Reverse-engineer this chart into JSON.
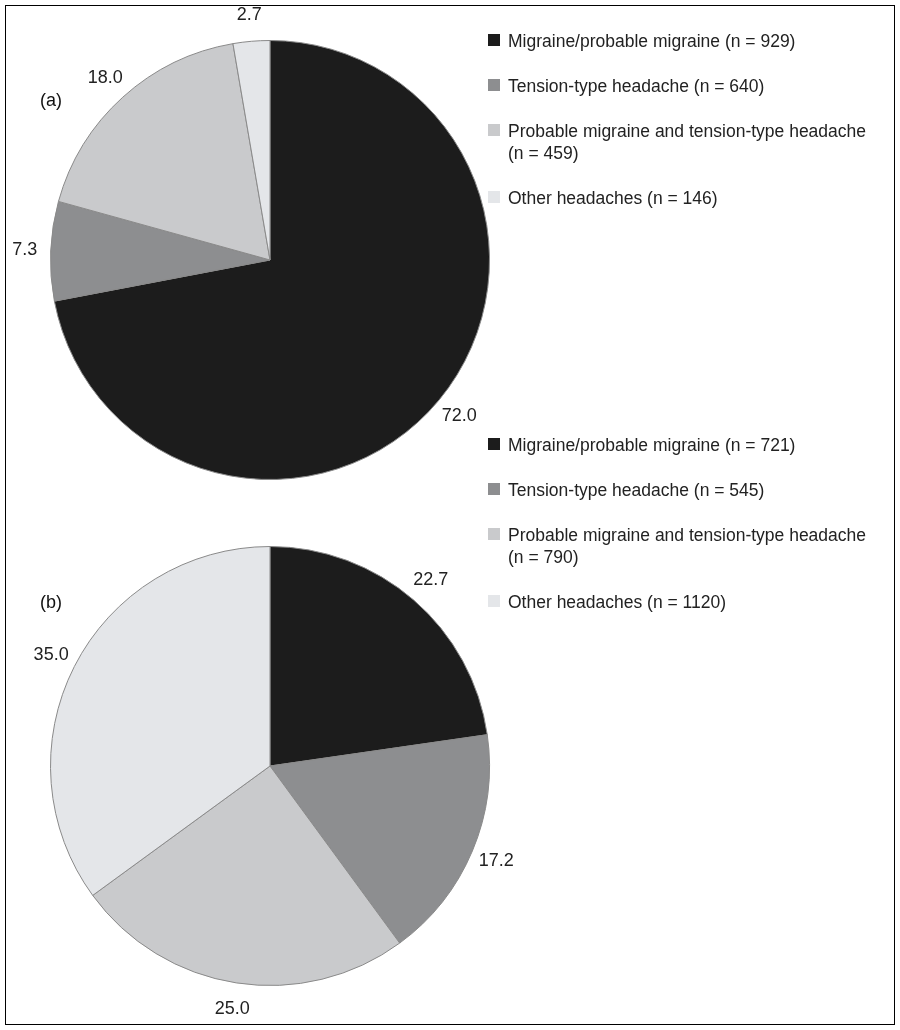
{
  "chart_data": [
    {
      "type": "pie",
      "title": "(a)",
      "categories": [
        "Migraine/probable migraine (n = 929)",
        "Tension-type headache (n = 640)",
        "Probable migraine and tension-type headache (n = 459)",
        "Other headaches (n = 146)"
      ],
      "values": [
        72.0,
        7.3,
        18.0,
        2.7
      ],
      "value_labels": [
        "72.0",
        "7.3",
        "18.0",
        "2.7"
      ],
      "colors": [
        "#1c1c1c",
        "#8d8e90",
        "#c9cacc",
        "#e4e6e9"
      ],
      "legend": "right"
    },
    {
      "type": "pie",
      "title": "(b)",
      "categories": [
        "Migraine/probable migraine (n = 721)",
        "Tension-type headache (n = 545)",
        "Probable migraine and tension-type headache (n = 790)",
        "Other headaches (n = 1120)"
      ],
      "values": [
        22.7,
        17.2,
        25.0,
        35.0
      ],
      "value_labels": [
        "22.7",
        "17.2",
        "25.0",
        "35.0"
      ],
      "colors": [
        "#1c1c1c",
        "#8d8e90",
        "#c9cacc",
        "#e4e6e9"
      ],
      "legend": "right"
    }
  ]
}
